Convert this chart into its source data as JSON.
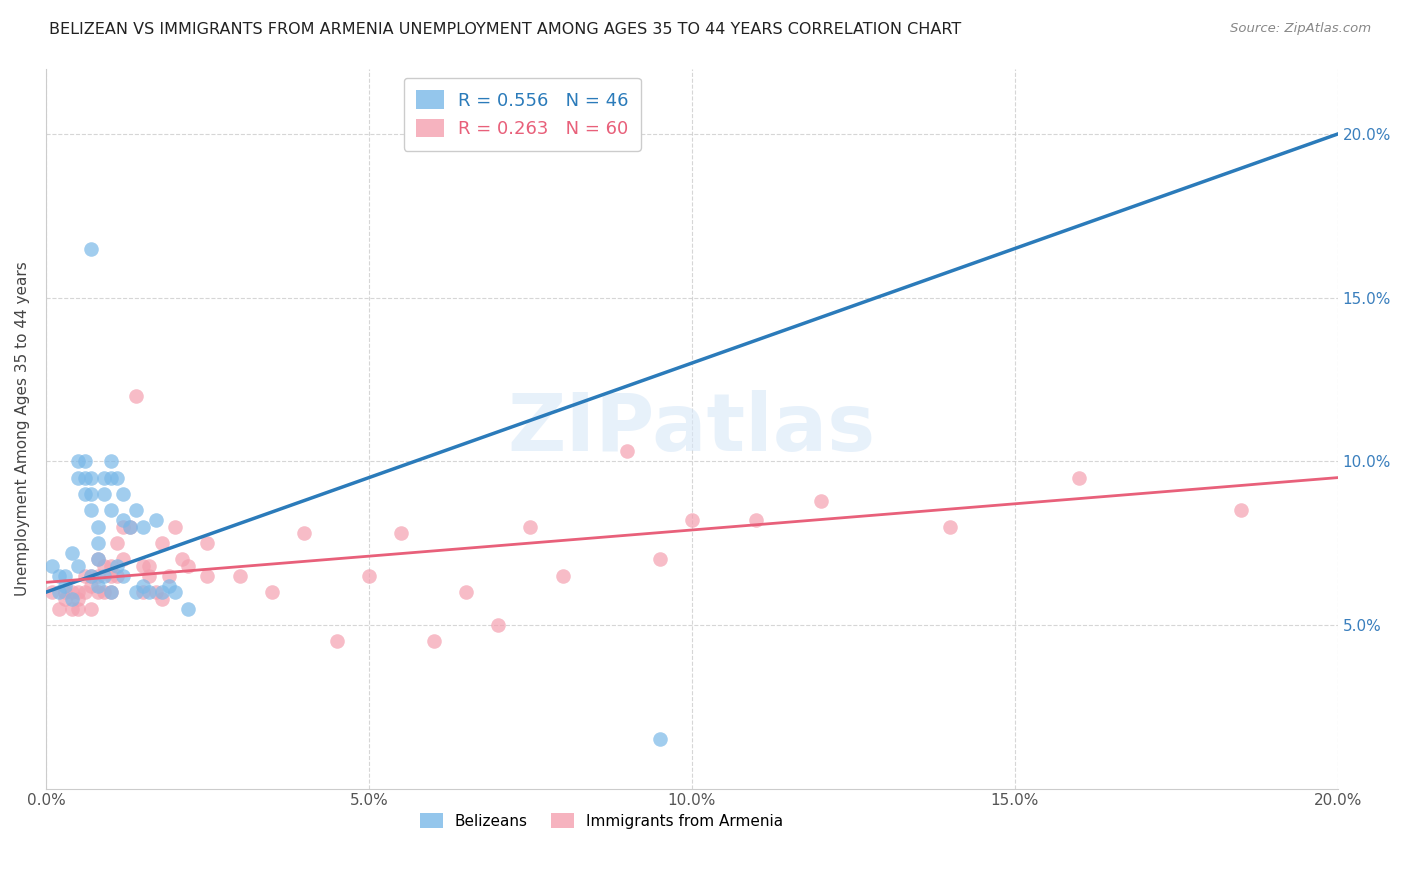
{
  "title": "BELIZEAN VS IMMIGRANTS FROM ARMENIA UNEMPLOYMENT AMONG AGES 35 TO 44 YEARS CORRELATION CHART",
  "source": "Source: ZipAtlas.com",
  "ylabel": "Unemployment Among Ages 35 to 44 years",
  "xlim": [
    0.0,
    0.2
  ],
  "ylim": [
    0.0,
    0.22
  ],
  "xtick_labels": [
    "0.0%",
    "5.0%",
    "10.0%",
    "15.0%",
    "20.0%"
  ],
  "xtick_vals": [
    0.0,
    0.05,
    0.1,
    0.15,
    0.2
  ],
  "ytick_labels": [
    "5.0%",
    "10.0%",
    "15.0%",
    "20.0%"
  ],
  "ytick_vals": [
    0.05,
    0.1,
    0.15,
    0.2
  ],
  "belizean_R": 0.556,
  "belizean_N": 46,
  "armenia_R": 0.263,
  "armenia_N": 60,
  "belizean_color": "#7ab8e8",
  "armenia_color": "#f4a0b0",
  "belizean_line_color": "#2b7bba",
  "armenia_line_color": "#e8607a",
  "watermark_text": "ZIPatlas",
  "belizean_x": [
    0.001,
    0.002,
    0.002,
    0.003,
    0.003,
    0.004,
    0.004,
    0.005,
    0.005,
    0.005,
    0.006,
    0.006,
    0.006,
    0.007,
    0.007,
    0.007,
    0.007,
    0.008,
    0.008,
    0.008,
    0.009,
    0.009,
    0.009,
    0.01,
    0.01,
    0.01,
    0.011,
    0.011,
    0.012,
    0.012,
    0.013,
    0.014,
    0.015,
    0.015,
    0.016,
    0.017,
    0.018,
    0.019,
    0.02,
    0.022,
    0.014,
    0.007,
    0.008,
    0.01,
    0.012,
    0.095
  ],
  "belizean_y": [
    0.068,
    0.065,
    0.06,
    0.065,
    0.062,
    0.072,
    0.058,
    0.1,
    0.095,
    0.068,
    0.1,
    0.095,
    0.09,
    0.095,
    0.09,
    0.085,
    0.065,
    0.08,
    0.075,
    0.07,
    0.095,
    0.09,
    0.065,
    0.095,
    0.085,
    0.06,
    0.095,
    0.068,
    0.09,
    0.065,
    0.08,
    0.085,
    0.08,
    0.062,
    0.06,
    0.082,
    0.06,
    0.062,
    0.06,
    0.055,
    0.06,
    0.165,
    0.062,
    0.1,
    0.082,
    0.015
  ],
  "armenia_x": [
    0.001,
    0.002,
    0.003,
    0.003,
    0.004,
    0.004,
    0.005,
    0.005,
    0.005,
    0.006,
    0.006,
    0.007,
    0.007,
    0.007,
    0.008,
    0.008,
    0.008,
    0.009,
    0.009,
    0.01,
    0.01,
    0.01,
    0.011,
    0.011,
    0.012,
    0.012,
    0.013,
    0.014,
    0.015,
    0.015,
    0.016,
    0.016,
    0.017,
    0.018,
    0.018,
    0.019,
    0.02,
    0.021,
    0.022,
    0.025,
    0.025,
    0.03,
    0.035,
    0.04,
    0.045,
    0.05,
    0.055,
    0.06,
    0.065,
    0.07,
    0.075,
    0.08,
    0.09,
    0.095,
    0.1,
    0.11,
    0.12,
    0.14,
    0.16,
    0.185
  ],
  "armenia_y": [
    0.06,
    0.055,
    0.058,
    0.06,
    0.055,
    0.06,
    0.058,
    0.055,
    0.06,
    0.06,
    0.065,
    0.062,
    0.065,
    0.055,
    0.065,
    0.07,
    0.06,
    0.068,
    0.06,
    0.065,
    0.068,
    0.06,
    0.075,
    0.065,
    0.08,
    0.07,
    0.08,
    0.12,
    0.068,
    0.06,
    0.065,
    0.068,
    0.06,
    0.075,
    0.058,
    0.065,
    0.08,
    0.07,
    0.068,
    0.075,
    0.065,
    0.065,
    0.06,
    0.078,
    0.045,
    0.065,
    0.078,
    0.045,
    0.06,
    0.05,
    0.08,
    0.065,
    0.103,
    0.07,
    0.082,
    0.082,
    0.088,
    0.08,
    0.095,
    0.085
  ],
  "background_color": "#ffffff",
  "grid_color": "#cccccc",
  "bel_line_x0": 0.0,
  "bel_line_y0": 0.06,
  "bel_line_x1": 0.2,
  "bel_line_y1": 0.2,
  "arm_line_x0": 0.0,
  "arm_line_y0": 0.063,
  "arm_line_x1": 0.2,
  "arm_line_y1": 0.095
}
